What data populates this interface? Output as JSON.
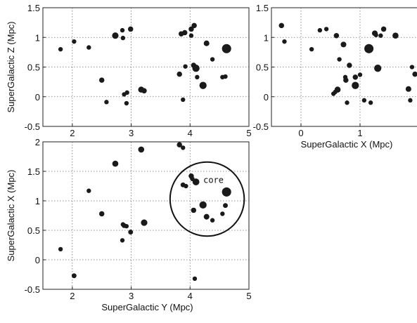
{
  "chart_data": [
    {
      "id": "yz",
      "type": "scatter",
      "xlabel": "",
      "ylabel": "SuperGalactic Z (Mpc)",
      "xlim": [
        1.5,
        5
      ],
      "ylim": [
        -0.5,
        1.5
      ],
      "xticks": [
        2,
        3,
        4,
        5
      ],
      "yticks": [
        -0.5,
        0,
        0.5,
        1,
        1.5
      ],
      "xtick_labels": [
        "2",
        "3",
        "4",
        "5"
      ],
      "ytick_labels": [
        "-0.5",
        "0",
        "0.5",
        "1",
        "1.5"
      ],
      "grid": true,
      "points": [
        {
          "x": 1.8,
          "y": 0.8,
          "s": 0.6
        },
        {
          "x": 2.03,
          "y": 0.93,
          "s": 0.6
        },
        {
          "x": 2.28,
          "y": 0.83,
          "s": 0.6
        },
        {
          "x": 2.5,
          "y": 0.28,
          "s": 0.8
        },
        {
          "x": 2.58,
          "y": -0.09,
          "s": 0.6
        },
        {
          "x": 2.73,
          "y": 1.03,
          "s": 1.1
        },
        {
          "x": 2.85,
          "y": 1.12,
          "s": 0.6
        },
        {
          "x": 2.86,
          "y": 0.99,
          "s": 0.6
        },
        {
          "x": 2.88,
          "y": 0.04,
          "s": 0.6
        },
        {
          "x": 2.93,
          "y": 0.07,
          "s": 0.6
        },
        {
          "x": 2.92,
          "y": -0.11,
          "s": 0.6
        },
        {
          "x": 2.99,
          "y": 1.14,
          "s": 0.8
        },
        {
          "x": 3.17,
          "y": 0.12,
          "s": 1.0
        },
        {
          "x": 3.22,
          "y": 0.1,
          "s": 0.8
        },
        {
          "x": 3.82,
          "y": 0.38,
          "s": 0.8
        },
        {
          "x": 3.85,
          "y": 1.06,
          "s": 0.8
        },
        {
          "x": 3.88,
          "y": -0.05,
          "s": 0.6
        },
        {
          "x": 3.91,
          "y": 1.08,
          "s": 0.8
        },
        {
          "x": 3.92,
          "y": 0.51,
          "s": 0.6
        },
        {
          "x": 4.02,
          "y": 1.03,
          "s": 0.6
        },
        {
          "x": 4.02,
          "y": 1.14,
          "s": 0.8
        },
        {
          "x": 4.07,
          "y": 1.2,
          "s": 0.8
        },
        {
          "x": 4.06,
          "y": 0.53,
          "s": 0.8
        },
        {
          "x": 4.1,
          "y": 0.48,
          "s": 1.3
        },
        {
          "x": 4.12,
          "y": 0.33,
          "s": 0.6
        },
        {
          "x": 4.22,
          "y": 0.19,
          "s": 1.3
        },
        {
          "x": 4.28,
          "y": 0.9,
          "s": 0.9
        },
        {
          "x": 4.38,
          "y": 0.63,
          "s": 0.6
        },
        {
          "x": 4.55,
          "y": 0.33,
          "s": 0.6
        },
        {
          "x": 4.6,
          "y": 0.34,
          "s": 0.6
        },
        {
          "x": 4.62,
          "y": 0.81,
          "s": 1.8
        }
      ]
    },
    {
      "id": "xz",
      "type": "scatter",
      "xlabel": "SuperGalactic X (Mpc)",
      "ylabel": "",
      "xlim": [
        -0.5,
        2
      ],
      "ylim": [
        -0.5,
        1.5
      ],
      "xticks": [
        0,
        1,
        2
      ],
      "yticks": [
        -0.5,
        0,
        0.5,
        1,
        1.5
      ],
      "xtick_labels": [
        "0",
        "1",
        "2"
      ],
      "ytick_labels": [
        "-0.5",
        "0",
        "0.5",
        "1",
        "1.5"
      ],
      "grid": true,
      "points": [
        {
          "x": -0.33,
          "y": 1.2,
          "s": 0.8
        },
        {
          "x": -0.28,
          "y": 0.93,
          "s": 0.6
        },
        {
          "x": 0.18,
          "y": 0.8,
          "s": 0.6
        },
        {
          "x": 0.32,
          "y": 1.12,
          "s": 0.6
        },
        {
          "x": 0.43,
          "y": 1.14,
          "s": 0.6
        },
        {
          "x": 0.55,
          "y": 0.05,
          "s": 0.6
        },
        {
          "x": 0.58,
          "y": 0.08,
          "s": 0.6
        },
        {
          "x": 0.6,
          "y": 1.03,
          "s": 0.8
        },
        {
          "x": 0.62,
          "y": 0.12,
          "s": 1.0
        },
        {
          "x": 0.65,
          "y": 0.63,
          "s": 0.6
        },
        {
          "x": 0.72,
          "y": 0.88,
          "s": 0.9
        },
        {
          "x": 0.75,
          "y": 0.33,
          "s": 0.6
        },
        {
          "x": 0.76,
          "y": 0.28,
          "s": 0.8
        },
        {
          "x": 0.78,
          "y": -0.1,
          "s": 0.6
        },
        {
          "x": 0.82,
          "y": 0.53,
          "s": 0.8
        },
        {
          "x": 0.92,
          "y": 0.33,
          "s": 0.8
        },
        {
          "x": 0.92,
          "y": 0.19,
          "s": 1.3
        },
        {
          "x": 1.0,
          "y": 0.37,
          "s": 0.6
        },
        {
          "x": 1.07,
          "y": -0.06,
          "s": 0.6
        },
        {
          "x": 1.15,
          "y": 0.81,
          "s": 1.8
        },
        {
          "x": 1.18,
          "y": -0.1,
          "s": 0.6
        },
        {
          "x": 1.25,
          "y": 1.07,
          "s": 0.9
        },
        {
          "x": 1.27,
          "y": 1.04,
          "s": 0.6
        },
        {
          "x": 1.3,
          "y": 0.48,
          "s": 1.3
        },
        {
          "x": 1.35,
          "y": 1.03,
          "s": 0.6
        },
        {
          "x": 1.4,
          "y": 1.14,
          "s": 0.8
        },
        {
          "x": 1.6,
          "y": 1.03,
          "s": 1.0
        },
        {
          "x": 1.82,
          "y": 0.13,
          "s": 0.9
        },
        {
          "x": 1.85,
          "y": -0.06,
          "s": 0.6
        },
        {
          "x": 1.88,
          "y": 0.5,
          "s": 0.6
        },
        {
          "x": 1.93,
          "y": 0.38,
          "s": 0.8
        }
      ]
    },
    {
      "id": "yx",
      "type": "scatter",
      "xlabel": "SuperGalactic Y (Mpc)",
      "ylabel": "SuperGalactic X (Mpc)",
      "xlim": [
        1.5,
        5
      ],
      "ylim": [
        -0.5,
        2
      ],
      "xticks": [
        2,
        3,
        4,
        5
      ],
      "yticks": [
        -0.5,
        0,
        0.5,
        1,
        1.5,
        2
      ],
      "xtick_labels": [
        "2",
        "3",
        "4",
        "5"
      ],
      "ytick_labels": [
        "-0.5",
        "0",
        "0.5",
        "1",
        "1.5",
        "2"
      ],
      "grid": true,
      "points": [
        {
          "x": 1.8,
          "y": 0.18,
          "s": 0.6
        },
        {
          "x": 2.03,
          "y": -0.27,
          "s": 0.7
        },
        {
          "x": 2.28,
          "y": 1.17,
          "s": 0.6
        },
        {
          "x": 2.5,
          "y": 0.78,
          "s": 0.8
        },
        {
          "x": 2.73,
          "y": 1.63,
          "s": 1.0
        },
        {
          "x": 2.85,
          "y": 0.33,
          "s": 0.6
        },
        {
          "x": 2.86,
          "y": 0.6,
          "s": 0.6
        },
        {
          "x": 2.88,
          "y": 0.58,
          "s": 0.7
        },
        {
          "x": 2.92,
          "y": 0.57,
          "s": 0.6
        },
        {
          "x": 2.99,
          "y": 0.47,
          "s": 0.7
        },
        {
          "x": 3.17,
          "y": 1.87,
          "s": 1.0
        },
        {
          "x": 3.22,
          "y": 0.63,
          "s": 1.1
        },
        {
          "x": 3.82,
          "y": 1.95,
          "s": 0.8
        },
        {
          "x": 3.88,
          "y": 1.9,
          "s": 0.6
        },
        {
          "x": 3.88,
          "y": 1.27,
          "s": 0.7
        },
        {
          "x": 3.93,
          "y": 1.25,
          "s": 0.6
        },
        {
          "x": 4.02,
          "y": 1.42,
          "s": 0.8
        },
        {
          "x": 4.04,
          "y": 1.37,
          "s": 0.6
        },
        {
          "x": 4.06,
          "y": 0.84,
          "s": 0.8
        },
        {
          "x": 4.08,
          "y": -0.32,
          "s": 0.6
        },
        {
          "x": 4.1,
          "y": 1.32,
          "s": 1.2
        },
        {
          "x": 4.22,
          "y": 0.93,
          "s": 1.3
        },
        {
          "x": 4.28,
          "y": 0.73,
          "s": 0.9
        },
        {
          "x": 4.38,
          "y": 0.67,
          "s": 0.6
        },
        {
          "x": 4.55,
          "y": 0.78,
          "s": 0.6
        },
        {
          "x": 4.6,
          "y": 0.92,
          "s": 0.7
        },
        {
          "x": 4.62,
          "y": 1.15,
          "s": 1.8
        }
      ],
      "annotations": [
        {
          "text": "core",
          "shape": "circle",
          "center": [
            4.29,
            1.03
          ],
          "radius_x": 0.63
        }
      ]
    }
  ]
}
